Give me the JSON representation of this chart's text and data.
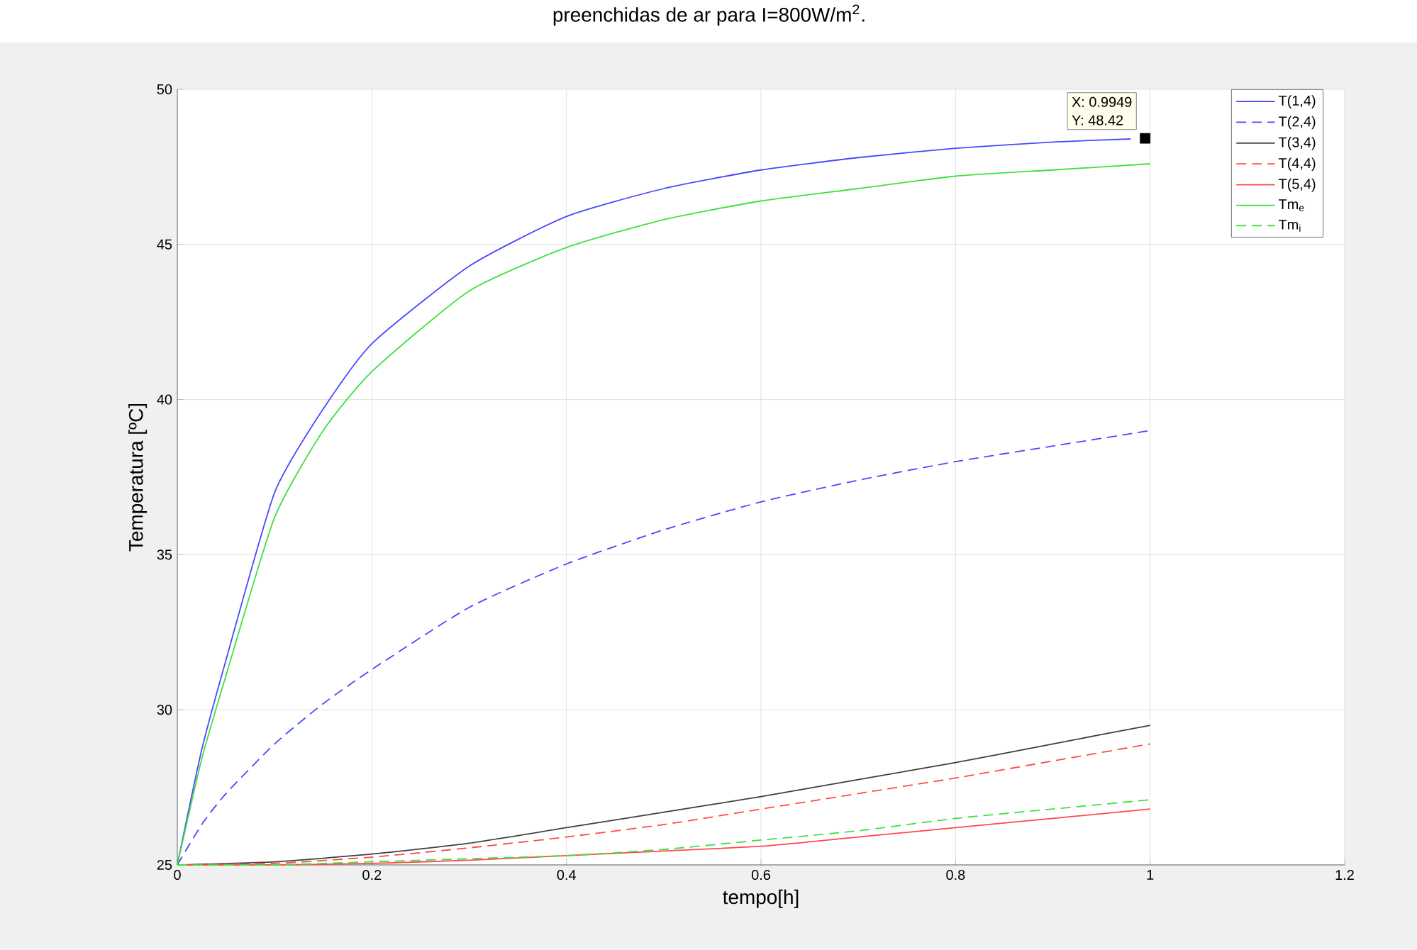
{
  "chart_data": {
    "type": "line",
    "title": "preenchidas de ar para I=800W/m$^{2}$.",
    "xlabel": "tempo[h]",
    "ylabel": "Temperatura [ºC]",
    "xlim": [
      0,
      1.2
    ],
    "xticks": [
      0,
      0.2,
      0.4,
      0.6,
      0.8,
      1,
      1.2
    ],
    "ylim": [
      25,
      50
    ],
    "yticks": [
      25,
      30,
      35,
      40,
      45,
      50
    ],
    "grid": true,
    "legend": "top right",
    "series": [
      {
        "name": "T(1,4)",
        "color": "#4848ff",
        "line_style": "solid",
        "x": [
          0,
          0.025,
          0.05,
          0.1,
          0.15,
          0.2,
          0.3,
          0.4,
          0.5,
          0.6,
          0.7,
          0.8,
          0.9,
          0.98
        ],
        "values": [
          25,
          28.7,
          31.6,
          37.0,
          39.7,
          41.8,
          44.3,
          45.9,
          46.8,
          47.4,
          47.8,
          48.1,
          48.3,
          48.4
        ]
      },
      {
        "name": "T(2,4)",
        "color": "#4848ff",
        "line_style": "dashed",
        "x": [
          0,
          0.025,
          0.05,
          0.1,
          0.15,
          0.2,
          0.3,
          0.4,
          0.5,
          0.6,
          0.7,
          0.8,
          0.9,
          1.0
        ],
        "values": [
          25,
          26.3,
          27.3,
          28.9,
          30.2,
          31.3,
          33.3,
          34.7,
          35.8,
          36.7,
          37.4,
          38.0,
          38.5,
          39.0
        ]
      },
      {
        "name": "T(3,4)",
        "color": "#404040",
        "line_style": "solid",
        "x": [
          0,
          0.1,
          0.2,
          0.3,
          0.4,
          0.5,
          0.6,
          0.7,
          0.8,
          0.9,
          1.0
        ],
        "values": [
          25,
          25.1,
          25.35,
          25.7,
          26.2,
          26.7,
          27.2,
          27.75,
          28.3,
          28.9,
          29.5
        ]
      },
      {
        "name": "T(4,4)",
        "color": "#ff4848",
        "line_style": "dashed",
        "x": [
          0,
          0.1,
          0.2,
          0.3,
          0.4,
          0.5,
          0.6,
          0.7,
          0.8,
          0.9,
          1.0
        ],
        "values": [
          25,
          25.05,
          25.25,
          25.55,
          25.9,
          26.3,
          26.8,
          27.3,
          27.8,
          28.35,
          28.9
        ]
      },
      {
        "name": "T(5,4)",
        "color": "#ff4848",
        "line_style": "solid",
        "x": [
          0,
          0.1,
          0.2,
          0.3,
          0.4,
          0.5,
          0.6,
          0.7,
          0.8,
          0.9,
          1.0
        ],
        "values": [
          25,
          25.0,
          25.05,
          25.15,
          25.3,
          25.45,
          25.6,
          25.9,
          26.2,
          26.5,
          26.8
        ]
      },
      {
        "name": "Tm$_{e}$",
        "color": "#40e040",
        "line_style": "solid",
        "x": [
          0,
          0.025,
          0.05,
          0.1,
          0.15,
          0.2,
          0.3,
          0.4,
          0.5,
          0.6,
          0.7,
          0.8,
          0.9,
          1.0
        ],
        "values": [
          25,
          28.4,
          31.1,
          36.2,
          39.0,
          40.9,
          43.5,
          44.9,
          45.8,
          46.4,
          46.8,
          47.2,
          47.4,
          47.6
        ]
      },
      {
        "name": "Tm$_{i}$",
        "color": "#40e040",
        "line_style": "dashed",
        "x": [
          0,
          0.1,
          0.2,
          0.3,
          0.4,
          0.5,
          0.6,
          0.7,
          0.8,
          0.9,
          1.0
        ],
        "values": [
          25,
          25.0,
          25.1,
          25.2,
          25.3,
          25.5,
          25.8,
          26.1,
          26.5,
          26.8,
          27.1
        ]
      },
      {
        "type": "scatter",
        "marker": "square",
        "color": "#000000",
        "x": [
          0.9949
        ],
        "values": [
          48.42
        ]
      }
    ],
    "annotations": [
      "X: 0.9949",
      "Y: 48.42"
    ]
  }
}
